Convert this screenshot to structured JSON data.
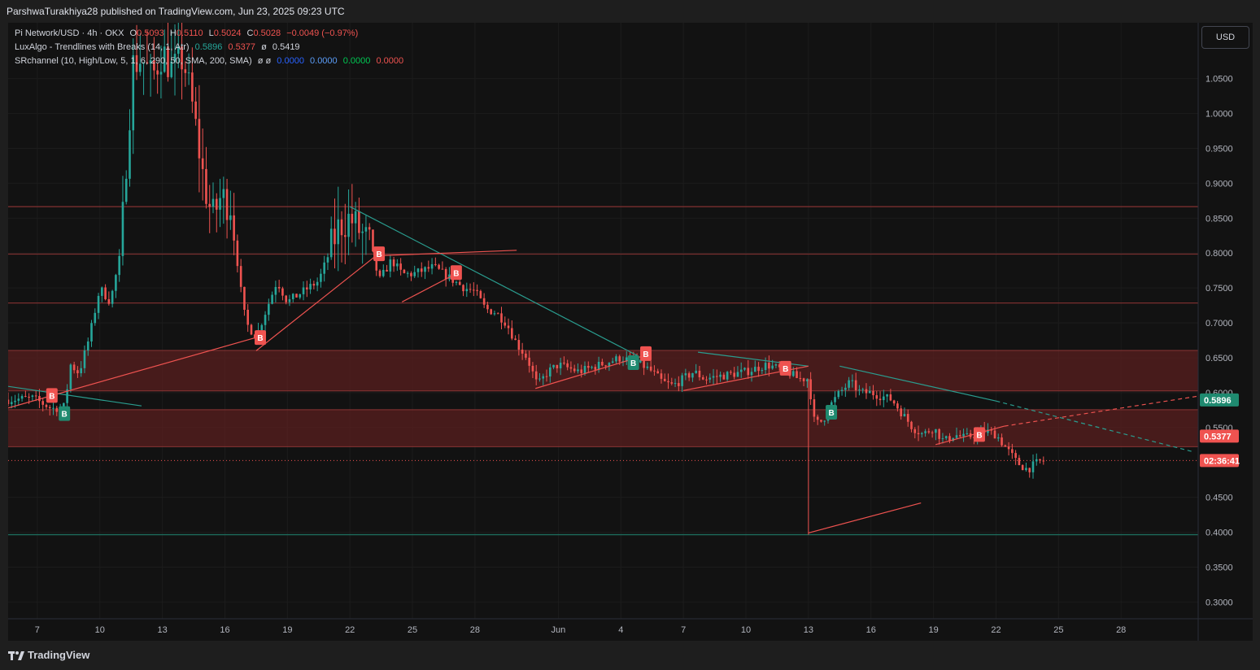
{
  "header": {
    "publisher": "ParshwaTurakhiya28 published on TradingView.com, Jun 23, 2025 09:23 UTC"
  },
  "legend": {
    "symbol": "Pi Network/USD · 4h · OKX",
    "o_label": "O",
    "o_val": "0.5093",
    "h_label": "H",
    "h_val": "0.5110",
    "l_label": "L",
    "l_val": "0.5024",
    "c_label": "C",
    "c_val": "0.5028",
    "change": "−0.0049 (−0.97%)",
    "ind1_name": "LuxAlgo - Trendlines with Breaks (14, 1, Atr)",
    "ind1_v1": "0.5896",
    "ind1_v2": "0.5377",
    "ind1_v3": "0.5419",
    "ind1_sym": "ø",
    "ind2_name": "SRchannel (10, High/Low, 5, 1, 6, 290, 50, SMA, 200, SMA)",
    "ind2_syms": "ø ø",
    "ind2_v1": "0.0000",
    "ind2_v2": "0.0000",
    "ind2_v3": "0.0000",
    "ind2_v4": "0.0000"
  },
  "currency_button": "USD",
  "branding": "TradingView",
  "colors": {
    "background": "#121212",
    "up": "#26a69a",
    "down": "#ef5350",
    "zone": "#5a1f1f",
    "resistance": "#7a2e2e",
    "support": "#1d6b5c",
    "trend_down": "#2a9d8f",
    "trend_up": "#ef5350",
    "label_blue": "#2962ff"
  },
  "chart_data": {
    "type": "candlestick",
    "symbol": "Pi Network/USD",
    "timeframe": "4h",
    "exchange": "OKX",
    "y_ticks": [
      "1.0500",
      "1.0000",
      "0.9500",
      "0.9000",
      "0.8500",
      "0.8000",
      "0.7500",
      "0.7000",
      "0.6500",
      "0.6000",
      "0.5500",
      "0.4500",
      "0.4000",
      "0.3500",
      "0.3000"
    ],
    "y_tick_values": [
      1.05,
      1.0,
      0.95,
      0.9,
      0.85,
      0.8,
      0.75,
      0.7,
      0.65,
      0.6,
      0.55,
      0.45,
      0.4,
      0.35,
      0.3
    ],
    "x_ticks": [
      "7",
      "10",
      "13",
      "16",
      "19",
      "22",
      "25",
      "28",
      "Jun",
      "4",
      "7",
      "10",
      "13",
      "16",
      "19",
      "22",
      "25",
      "28"
    ],
    "x_tick_days": [
      7,
      10,
      13,
      16,
      19,
      22,
      25,
      28,
      32,
      35,
      38,
      41,
      44,
      47,
      50,
      53,
      56,
      59
    ],
    "day_axis_note": "day index: May days as-is, June 1 = 32",
    "x_range_days": [
      5.6,
      62.7
    ],
    "y_range": [
      0.276,
      1.13
    ],
    "price_labels": [
      {
        "text": "0.5896",
        "value": 0.5896,
        "color": "#1f8a70"
      },
      {
        "text": "0.5377",
        "value": 0.5377,
        "color": "#ef5350"
      },
      {
        "text": "02:36:41",
        "value": 0.5028,
        "color": "#ef5350"
      }
    ],
    "last_price": 0.5028,
    "horizontal_levels": [
      {
        "value": 0.8665,
        "kind": "resistance"
      },
      {
        "value": 0.7985,
        "kind": "resistance"
      },
      {
        "value": 0.7285,
        "kind": "resistance"
      },
      {
        "value": 0.3965,
        "kind": "support"
      }
    ],
    "zones": [
      {
        "from": 0.6025,
        "to": 0.6605
      },
      {
        "from": 0.5225,
        "to": 0.5755
      }
    ],
    "trendlines": [
      {
        "kind": "down",
        "x1": 5.6,
        "y1": 0.609,
        "x2": 12.0,
        "y2": 0.581
      },
      {
        "kind": "down",
        "x1": 22.0,
        "y1": 0.8665,
        "x2": 35.8,
        "y2": 0.653
      },
      {
        "kind": "down",
        "x1": 38.7,
        "y1": 0.658,
        "x2": 44.0,
        "y2": 0.638
      },
      {
        "kind": "down",
        "x1": 45.5,
        "y1": 0.638,
        "x2": 53.0,
        "y2": 0.588
      },
      {
        "kind": "down",
        "x1": 53.0,
        "y1": 0.588,
        "x2": 62.5,
        "y2": 0.515,
        "dashed": true
      },
      {
        "kind": "up",
        "x1": 5.6,
        "y1": 0.578,
        "x2": 17.5,
        "y2": 0.679
      },
      {
        "kind": "up",
        "x1": 17.5,
        "y1": 0.66,
        "x2": 23.2,
        "y2": 0.795
      },
      {
        "kind": "up",
        "x1": 23.2,
        "y1": 0.796,
        "x2": 30.0,
        "y2": 0.804
      },
      {
        "kind": "up",
        "x1": 24.5,
        "y1": 0.73,
        "x2": 27.0,
        "y2": 0.769
      },
      {
        "kind": "up",
        "x1": 30.9,
        "y1": 0.606,
        "x2": 36.0,
        "y2": 0.652
      },
      {
        "kind": "up",
        "x1": 38.0,
        "y1": 0.603,
        "x2": 44.0,
        "y2": 0.638
      },
      {
        "kind": "up",
        "x1": 44.0,
        "y1": 0.399,
        "x2": 49.4,
        "y2": 0.442
      },
      {
        "kind": "up",
        "x1": 50.1,
        "y1": 0.5255,
        "x2": 53.4,
        "y2": 0.552
      },
      {
        "kind": "up",
        "x1": 53.4,
        "y1": 0.552,
        "x2": 62.7,
        "y2": 0.595,
        "dashed": true
      }
    ],
    "break_markers": [
      {
        "day": 7.7,
        "value": 0.596,
        "type": "bear"
      },
      {
        "day": 8.3,
        "value": 0.57,
        "type": "bull"
      },
      {
        "day": 17.7,
        "value": 0.679,
        "type": "bear"
      },
      {
        "day": 23.4,
        "value": 0.799,
        "type": "bear"
      },
      {
        "day": 27.1,
        "value": 0.772,
        "type": "bear"
      },
      {
        "day": 35.6,
        "value": 0.643,
        "type": "bull"
      },
      {
        "day": 36.2,
        "value": 0.656,
        "type": "bear"
      },
      {
        "day": 42.9,
        "value": 0.635,
        "type": "bear"
      },
      {
        "day": 45.1,
        "value": 0.572,
        "type": "bull"
      },
      {
        "day": 52.2,
        "value": 0.54,
        "type": "bear"
      }
    ],
    "path": [
      [
        5.6,
        0.59
      ],
      [
        6.8,
        0.592
      ],
      [
        7.7,
        0.577
      ],
      [
        8.3,
        0.58
      ],
      [
        8.6,
        0.64
      ],
      [
        9.0,
        0.628
      ],
      [
        9.5,
        0.68
      ],
      [
        10.0,
        0.75
      ],
      [
        10.5,
        0.73
      ],
      [
        11.0,
        0.8
      ],
      [
        11.3,
        0.95
      ],
      [
        11.6,
        1.07
      ],
      [
        12.0,
        1.08
      ],
      [
        12.5,
        1.05
      ],
      [
        13.0,
        1.09
      ],
      [
        13.5,
        1.06
      ],
      [
        14.0,
        1.08
      ],
      [
        14.5,
        1.0
      ],
      [
        15.0,
        0.9
      ],
      [
        15.4,
        0.85
      ],
      [
        15.8,
        0.88
      ],
      [
        16.3,
        0.87
      ],
      [
        16.7,
        0.76
      ],
      [
        17.0,
        0.7
      ],
      [
        17.5,
        0.68
      ],
      [
        18.0,
        0.72
      ],
      [
        18.5,
        0.76
      ],
      [
        19.0,
        0.73
      ],
      [
        19.5,
        0.74
      ],
      [
        20.0,
        0.75
      ],
      [
        20.5,
        0.76
      ],
      [
        21.0,
        0.8
      ],
      [
        21.5,
        0.84
      ],
      [
        22.0,
        0.85
      ],
      [
        22.5,
        0.83
      ],
      [
        23.0,
        0.81
      ],
      [
        23.4,
        0.76
      ],
      [
        24.0,
        0.79
      ],
      [
        24.5,
        0.77
      ],
      [
        25.0,
        0.77
      ],
      [
        25.5,
        0.775
      ],
      [
        26.0,
        0.78
      ],
      [
        26.5,
        0.77
      ],
      [
        27.0,
        0.76
      ],
      [
        27.5,
        0.75
      ],
      [
        28.0,
        0.745
      ],
      [
        28.5,
        0.72
      ],
      [
        29.0,
        0.715
      ],
      [
        29.5,
        0.7
      ],
      [
        30.0,
        0.67
      ],
      [
        30.5,
        0.65
      ],
      [
        31.0,
        0.61
      ],
      [
        31.5,
        0.63
      ],
      [
        32.0,
        0.64
      ],
      [
        33.0,
        0.63
      ],
      [
        34.0,
        0.64
      ],
      [
        35.0,
        0.65
      ],
      [
        36.0,
        0.64
      ],
      [
        36.5,
        0.63
      ],
      [
        37.0,
        0.615
      ],
      [
        37.5,
        0.61
      ],
      [
        38.0,
        0.62
      ],
      [
        38.5,
        0.63
      ],
      [
        39.0,
        0.62
      ],
      [
        40.0,
        0.625
      ],
      [
        41.0,
        0.63
      ],
      [
        42.0,
        0.64
      ],
      [
        43.0,
        0.63
      ],
      [
        43.5,
        0.62
      ],
      [
        44.0,
        0.62
      ],
      [
        44.3,
        0.555
      ],
      [
        44.7,
        0.56
      ],
      [
        45.0,
        0.58
      ],
      [
        45.5,
        0.6
      ],
      [
        46.0,
        0.615
      ],
      [
        46.5,
        0.6
      ],
      [
        47.0,
        0.6
      ],
      [
        47.5,
        0.595
      ],
      [
        48.0,
        0.59
      ],
      [
        48.5,
        0.57
      ],
      [
        49.0,
        0.55
      ],
      [
        49.5,
        0.54
      ],
      [
        50.0,
        0.55
      ],
      [
        50.5,
        0.53
      ],
      [
        51.0,
        0.54
      ],
      [
        51.5,
        0.535
      ],
      [
        52.0,
        0.54
      ],
      [
        52.5,
        0.545
      ],
      [
        53.0,
        0.54
      ],
      [
        53.5,
        0.52
      ],
      [
        54.0,
        0.5
      ],
      [
        54.5,
        0.49
      ],
      [
        55.0,
        0.5
      ],
      [
        55.3,
        0.503
      ]
    ]
  }
}
